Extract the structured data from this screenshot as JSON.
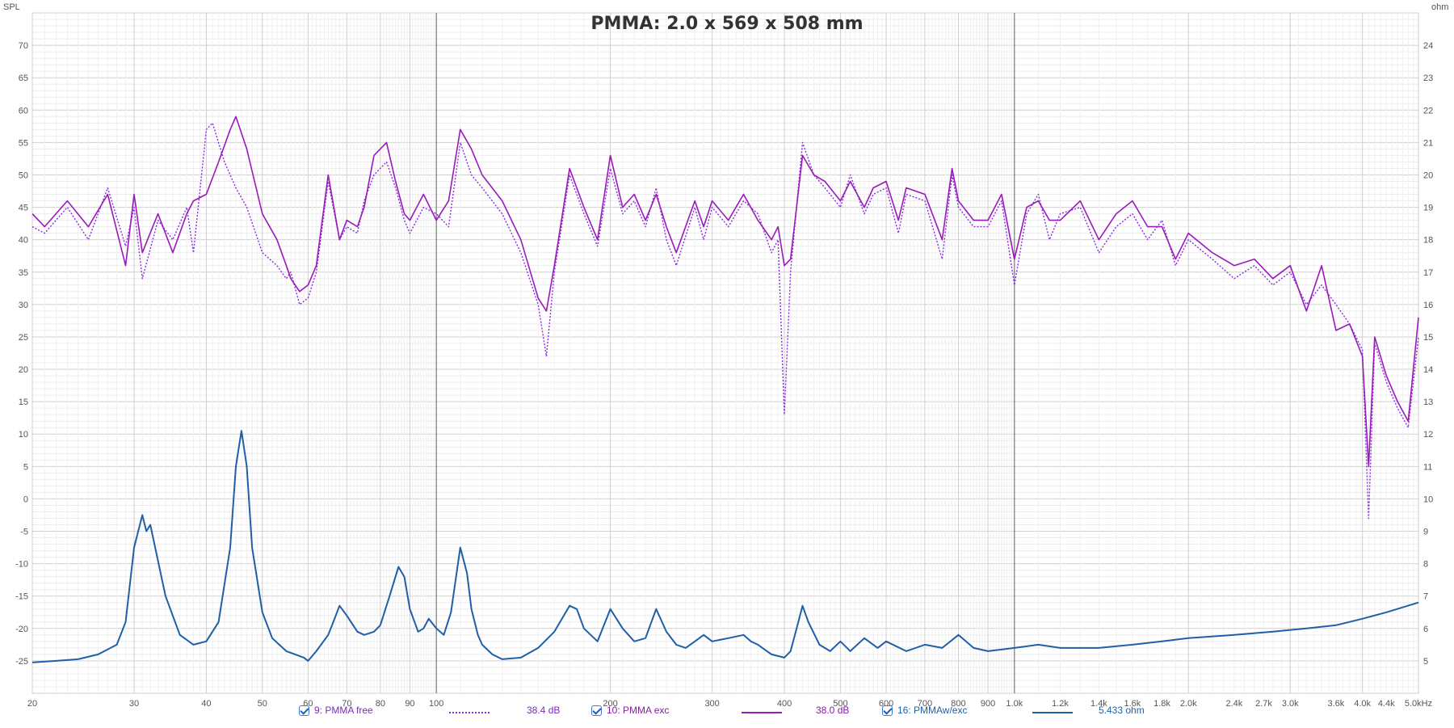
{
  "chart_data": {
    "type": "line",
    "title": "PMMA: 2.0 x 569 x 508 mm",
    "ylabel_left": "SPL",
    "ylabel_right": "ohm",
    "x_scale": "log",
    "xlim": [
      20,
      5000
    ],
    "ylim_left": [
      -30,
      75
    ],
    "ylim_right": [
      4,
      25
    ],
    "grid": true,
    "x_tick_labels": [
      {
        "v": 20,
        "t": "20"
      },
      {
        "v": 30,
        "t": "30"
      },
      {
        "v": 40,
        "t": "40"
      },
      {
        "v": 50,
        "t": "50"
      },
      {
        "v": 60,
        "t": "60"
      },
      {
        "v": 70,
        "t": "70"
      },
      {
        "v": 80,
        "t": "80"
      },
      {
        "v": 90,
        "t": "90"
      },
      {
        "v": 100,
        "t": "100"
      },
      {
        "v": 200,
        "t": "200"
      },
      {
        "v": 300,
        "t": "300"
      },
      {
        "v": 400,
        "t": "400"
      },
      {
        "v": 500,
        "t": "500"
      },
      {
        "v": 600,
        "t": "600"
      },
      {
        "v": 700,
        "t": "700"
      },
      {
        "v": 800,
        "t": "800"
      },
      {
        "v": 900,
        "t": "900"
      },
      {
        "v": 1000,
        "t": "1.0k"
      },
      {
        "v": 1200,
        "t": "1.2k"
      },
      {
        "v": 1400,
        "t": "1.4k"
      },
      {
        "v": 1600,
        "t": "1.6k"
      },
      {
        "v": 1800,
        "t": "1.8k"
      },
      {
        "v": 2000,
        "t": "2.0k"
      },
      {
        "v": 2400,
        "t": "2.4k"
      },
      {
        "v": 2700,
        "t": "2.7k"
      },
      {
        "v": 3000,
        "t": "3.0k"
      },
      {
        "v": 3600,
        "t": "3.6k"
      },
      {
        "v": 4000,
        "t": "4.0k"
      },
      {
        "v": 4400,
        "t": "4.4k"
      },
      {
        "v": 5000,
        "t": "5.0kHz"
      }
    ],
    "y_left_ticks": [
      "70",
      "65",
      "60",
      "55",
      "50",
      "45",
      "40",
      "35",
      "30",
      "25",
      "20",
      "15",
      "10",
      "5",
      "0",
      "-5",
      "-10",
      "-15",
      "-20",
      "-25"
    ],
    "y_right_ticks": [
      "24",
      "23",
      "22",
      "21",
      "20",
      "19",
      "18",
      "17",
      "16",
      "15",
      "14",
      "13",
      "12",
      "11",
      "10",
      "9",
      "8",
      "7",
      "6",
      "5"
    ],
    "series": [
      {
        "name": "9: PMMA free",
        "axis": "left",
        "style": "dotted",
        "color": "#8a2be2",
        "legend_value": "38.4 dB",
        "x": [
          20,
          21,
          23,
          25,
          27,
          29,
          30,
          31,
          33,
          35,
          37,
          38,
          40,
          41,
          43,
          45,
          47,
          50,
          53,
          55,
          56,
          58,
          60,
          62,
          65,
          68,
          70,
          73,
          75,
          78,
          82,
          85,
          88,
          90,
          95,
          100,
          105,
          110,
          115,
          120,
          130,
          140,
          150,
          155,
          160,
          170,
          180,
          190,
          200,
          210,
          220,
          230,
          240,
          250,
          260,
          280,
          290,
          300,
          320,
          340,
          360,
          380,
          390,
          400,
          410,
          430,
          450,
          470,
          500,
          520,
          550,
          570,
          600,
          630,
          650,
          700,
          750,
          780,
          800,
          850,
          900,
          950,
          1000,
          1050,
          1100,
          1150,
          1200,
          1300,
          1400,
          1500,
          1600,
          1700,
          1800,
          1900,
          2000,
          2200,
          2400,
          2600,
          2800,
          3000,
          3200,
          3400,
          3600,
          3800,
          4000,
          4100,
          4200,
          4400,
          4600,
          4800,
          5000
        ],
        "y": [
          42,
          41,
          45,
          40,
          48,
          39,
          45,
          34,
          43,
          40,
          45,
          38,
          57,
          58,
          52,
          48,
          45,
          38,
          36,
          34,
          35,
          30,
          31,
          35,
          49,
          40,
          42,
          41,
          46,
          50,
          52,
          48,
          43,
          41,
          45,
          44,
          42,
          55,
          50,
          48,
          44,
          38,
          30,
          22,
          35,
          50,
          44,
          39,
          51,
          44,
          46,
          42,
          48,
          40,
          36,
          45,
          40,
          45,
          42,
          46,
          44,
          38,
          40,
          13,
          35,
          55,
          50,
          48,
          45,
          50,
          44,
          47,
          48,
          41,
          47,
          46,
          37,
          50,
          45,
          42,
          42,
          46,
          33,
          44,
          47,
          40,
          44,
          45,
          38,
          42,
          44,
          40,
          43,
          36,
          40,
          37,
          34,
          36,
          33,
          35,
          30,
          33,
          30,
          27,
          23,
          -3,
          24,
          18,
          14,
          11,
          25
        ]
      },
      {
        "name": "10: PMMA exc",
        "axis": "left",
        "style": "solid",
        "color": "#9a1ab8",
        "legend_value": "38.0 dB",
        "x": [
          20,
          21,
          23,
          25,
          27,
          29,
          30,
          31,
          33,
          35,
          37,
          38,
          40,
          42,
          44,
          45,
          47,
          50,
          53,
          55,
          56,
          58,
          60,
          62,
          65,
          68,
          70,
          73,
          75,
          78,
          82,
          85,
          88,
          90,
          95,
          100,
          105,
          110,
          115,
          120,
          130,
          140,
          150,
          155,
          160,
          170,
          180,
          190,
          200,
          210,
          220,
          230,
          240,
          250,
          260,
          280,
          290,
          300,
          320,
          340,
          360,
          380,
          390,
          400,
          410,
          430,
          450,
          470,
          500,
          520,
          550,
          570,
          600,
          630,
          650,
          700,
          750,
          780,
          800,
          850,
          900,
          950,
          1000,
          1050,
          1100,
          1150,
          1200,
          1300,
          1400,
          1500,
          1600,
          1700,
          1800,
          1900,
          2000,
          2200,
          2400,
          2600,
          2800,
          3000,
          3200,
          3400,
          3600,
          3800,
          4000,
          4100,
          4200,
          4400,
          4600,
          4800,
          5000
        ],
        "y": [
          44,
          42,
          46,
          42,
          47,
          36,
          47,
          38,
          44,
          38,
          44,
          46,
          47,
          52,
          57,
          59,
          54,
          44,
          40,
          36,
          34,
          32,
          33,
          36,
          50,
          40,
          43,
          42,
          45,
          53,
          55,
          49,
          44,
          43,
          47,
          43,
          46,
          57,
          54,
          50,
          46,
          40,
          31,
          29,
          36,
          51,
          45,
          40,
          53,
          45,
          47,
          43,
          47,
          42,
          38,
          46,
          42,
          46,
          43,
          47,
          43,
          40,
          42,
          36,
          37,
          53,
          50,
          49,
          46,
          49,
          45,
          48,
          49,
          43,
          48,
          47,
          40,
          51,
          46,
          43,
          43,
          47,
          37,
          45,
          46,
          43,
          43,
          46,
          40,
          44,
          46,
          42,
          42,
          37,
          41,
          38,
          36,
          37,
          34,
          36,
          29,
          36,
          26,
          27,
          22,
          5,
          25,
          19,
          15,
          12,
          28
        ]
      },
      {
        "name": "16: PMMAw/exc",
        "axis": "right",
        "style": "solid",
        "color": "#1f5fa6",
        "legend_value": "5.433 ohm",
        "x": [
          20,
          22,
          24,
          26,
          28,
          29,
          30,
          31,
          31.5,
          32,
          34,
          36,
          38,
          40,
          42,
          44,
          45,
          46,
          47,
          48,
          50,
          52,
          55,
          57,
          59,
          60,
          62,
          65,
          66,
          68,
          70,
          73,
          75,
          78,
          80,
          83,
          86,
          88,
          90,
          93,
          95,
          97,
          100,
          103,
          106,
          110,
          113,
          115,
          118,
          120,
          125,
          130,
          140,
          150,
          160,
          170,
          175,
          180,
          190,
          200,
          210,
          220,
          230,
          240,
          250,
          260,
          270,
          280,
          290,
          300,
          320,
          340,
          350,
          360,
          380,
          400,
          410,
          420,
          430,
          440,
          460,
          480,
          500,
          520,
          550,
          580,
          600,
          650,
          700,
          750,
          800,
          850,
          900,
          1000,
          1100,
          1200,
          1400,
          1600,
          1800,
          2000,
          2400,
          2800,
          3200,
          3600,
          4000,
          4400,
          5000
        ],
        "y": [
          4.95,
          5.0,
          5.05,
          5.2,
          5.5,
          6.2,
          8.5,
          9.5,
          9.0,
          9.2,
          7.0,
          5.8,
          5.5,
          5.6,
          6.2,
          8.5,
          11.0,
          12.1,
          11.0,
          8.5,
          6.5,
          5.7,
          5.3,
          5.2,
          5.1,
          5.0,
          5.3,
          5.8,
          6.1,
          6.7,
          6.4,
          5.9,
          5.8,
          5.9,
          6.1,
          7.0,
          7.9,
          7.6,
          6.6,
          5.9,
          6.0,
          6.3,
          6.0,
          5.8,
          6.5,
          8.5,
          7.7,
          6.6,
          5.8,
          5.5,
          5.2,
          5.05,
          5.1,
          5.4,
          5.9,
          6.7,
          6.6,
          6.0,
          5.6,
          6.6,
          6.0,
          5.6,
          5.7,
          6.6,
          5.9,
          5.5,
          5.4,
          5.6,
          5.8,
          5.6,
          5.7,
          5.8,
          5.6,
          5.5,
          5.2,
          5.1,
          5.3,
          6.0,
          6.7,
          6.2,
          5.5,
          5.3,
          5.6,
          5.3,
          5.7,
          5.4,
          5.6,
          5.3,
          5.5,
          5.4,
          5.8,
          5.4,
          5.3,
          5.4,
          5.5,
          5.4,
          5.4,
          5.5,
          5.6,
          5.7,
          5.8,
          5.9,
          6.0,
          6.1,
          6.3,
          6.5,
          6.8
        ]
      }
    ]
  }
}
